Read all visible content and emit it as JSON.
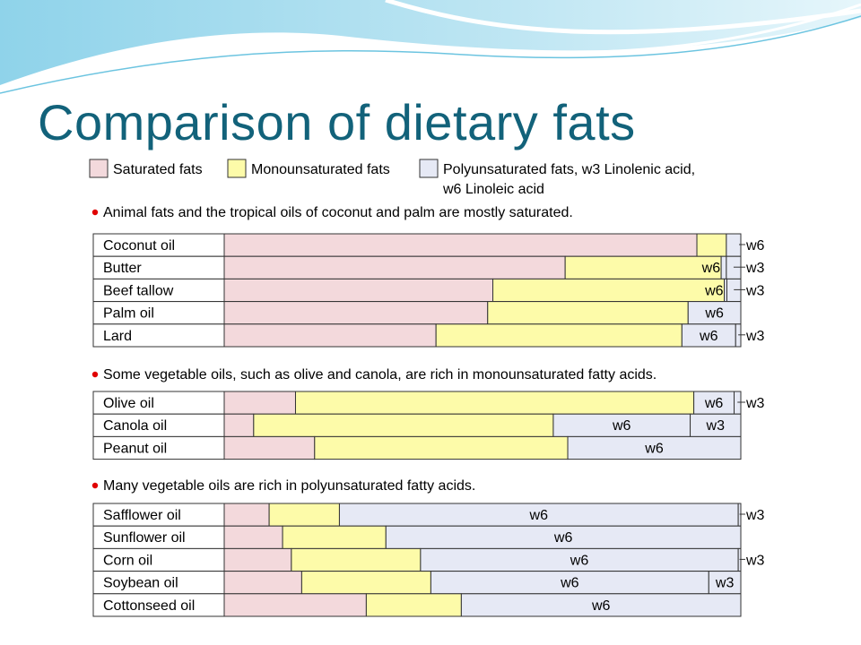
{
  "title": "Comparison of dietary fats",
  "colors": {
    "saturated": "#f3d9dc",
    "monounsaturated": "#fdfba9",
    "polyunsaturated": "#e6e9f5",
    "outline": "#333333",
    "title": "#12627a",
    "bullet": "#e00000"
  },
  "chart_data": {
    "type": "bar",
    "orientation": "horizontal",
    "stacked": true,
    "title": "Comparison of dietary fats",
    "xlim": [
      0,
      100
    ],
    "unit": "% of total fat",
    "legend": {
      "placement": "top",
      "items": [
        {
          "key": "saturated",
          "label": "Saturated fats"
        },
        {
          "key": "monounsaturated",
          "label": "Monounsaturated fats"
        },
        {
          "key": "polyunsaturated",
          "label": "Polyunsaturated fats, w3 Linolenic acid,",
          "label_line2": "w6 Linoleic acid"
        }
      ]
    },
    "groups": [
      {
        "note": "Animal fats and the tropical oils of coconut and palm are mostly saturated.",
        "rows": [
          {
            "name": "Coconut oil",
            "saturated": 91.5,
            "monounsaturated": 5.7,
            "w6": 2.8,
            "w3": 0,
            "w6_label": "w6",
            "w3_label": ""
          },
          {
            "name": "Butter",
            "saturated": 66.0,
            "monounsaturated": 30.2,
            "w6": 1.0,
            "w3": 2.8,
            "w6_label": "w6",
            "w3_label": "w3"
          },
          {
            "name": "Beef tallow",
            "saturated": 52.0,
            "monounsaturated": 44.8,
            "w6": 0.5,
            "w3": 2.7,
            "w6_label": "w6",
            "w3_label": "w3"
          },
          {
            "name": "Palm oil",
            "saturated": 51.0,
            "monounsaturated": 38.8,
            "w6": 10.2,
            "w3": 0,
            "w6_label": "w6",
            "w3_label": ""
          },
          {
            "name": "Lard",
            "saturated": 41.0,
            "monounsaturated": 47.6,
            "w6": 10.4,
            "w3": 1.0,
            "w6_label": "w6",
            "w3_label": "w3"
          }
        ]
      },
      {
        "note": "Some vegetable oils, such as olive and canola, are rich in monounsaturated fatty acids.",
        "rows": [
          {
            "name": "Olive oil",
            "saturated": 13.8,
            "monounsaturated": 77.1,
            "w6": 7.8,
            "w3": 1.3,
            "w6_label": "w6",
            "w3_label": "w3"
          },
          {
            "name": "Canola oil",
            "saturated": 5.7,
            "monounsaturated": 58.0,
            "w6": 26.5,
            "w3": 9.8,
            "w6_label": "w6",
            "w3_label": "w3"
          },
          {
            "name": "Peanut oil",
            "saturated": 17.5,
            "monounsaturated": 49.0,
            "w6": 33.5,
            "w3": 0,
            "w6_label": "w6",
            "w3_label": ""
          }
        ]
      },
      {
        "note": "Many vegetable oils are rich in polyunsaturated fatty acids.",
        "rows": [
          {
            "name": "Safflower oil",
            "saturated": 8.7,
            "monounsaturated": 13.6,
            "w6": 77.2,
            "w3": 0.5,
            "w6_label": "w6",
            "w3_label": "w3"
          },
          {
            "name": "Sunflower oil",
            "saturated": 11.3,
            "monounsaturated": 20.0,
            "w6": 68.7,
            "w3": 0,
            "w6_label": "w6",
            "w3_label": ""
          },
          {
            "name": "Corn oil",
            "saturated": 13.0,
            "monounsaturated": 25.0,
            "w6": 61.5,
            "w3": 0.5,
            "w6_label": "w6",
            "w3_label": "w3"
          },
          {
            "name": "Soybean oil",
            "saturated": 15.0,
            "monounsaturated": 25.0,
            "w6": 53.8,
            "w3": 6.2,
            "w6_label": "w6",
            "w3_label": "w3"
          },
          {
            "name": "Cottonseed oil",
            "saturated": 27.5,
            "monounsaturated": 18.4,
            "w6": 54.1,
            "w3": 0,
            "w6_label": "w6",
            "w3_label": ""
          }
        ]
      }
    ]
  }
}
